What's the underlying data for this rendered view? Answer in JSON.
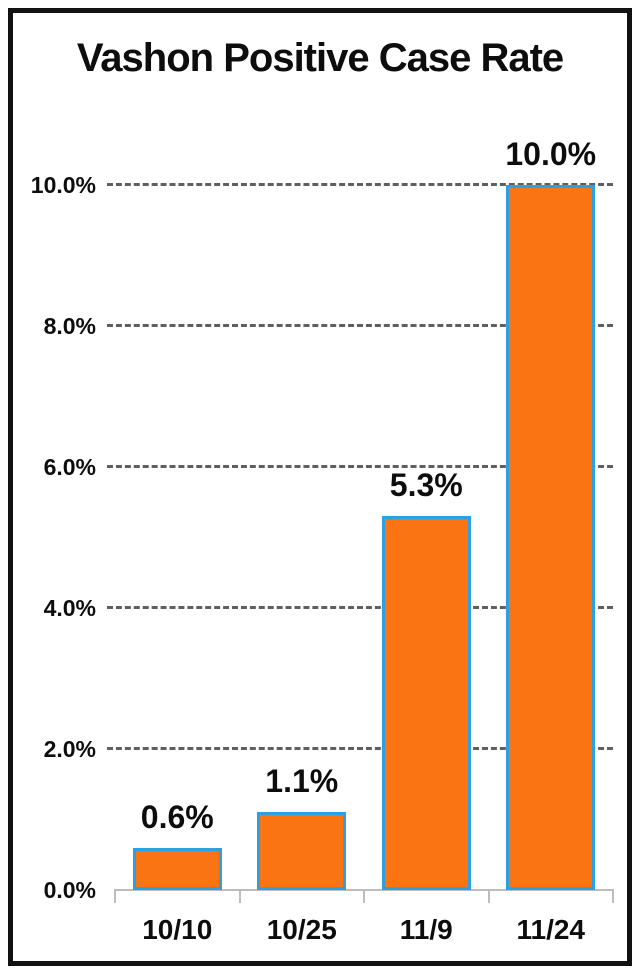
{
  "chart_data": {
    "type": "bar",
    "title": "Vashon Positive Case Rate",
    "categories": [
      "10/10",
      "10/25",
      "11/9",
      "11/24"
    ],
    "values": [
      0.6,
      1.1,
      5.3,
      10.0
    ],
    "value_labels": [
      "0.6%",
      "1.1%",
      "5.3%",
      "10.0%"
    ],
    "yticks": [
      0,
      2,
      4,
      6,
      8,
      10
    ],
    "ytick_labels": [
      "0.0%",
      "2.0%",
      "4.0%",
      "6.0%",
      "8.0%",
      "10.0%"
    ],
    "ylim": [
      0,
      10
    ],
    "xlabel": "",
    "ylabel": "",
    "grid": "horizontal-dashed",
    "legend": "none",
    "colors": {
      "bar_fill": "#FA7414",
      "bar_border": "#2D9FE3",
      "gridline": "#5F5F5F",
      "axis": "#BDBDBD",
      "text": "#0D0D0D",
      "frame_border": "#121212",
      "background": "#FFFFFF"
    }
  }
}
